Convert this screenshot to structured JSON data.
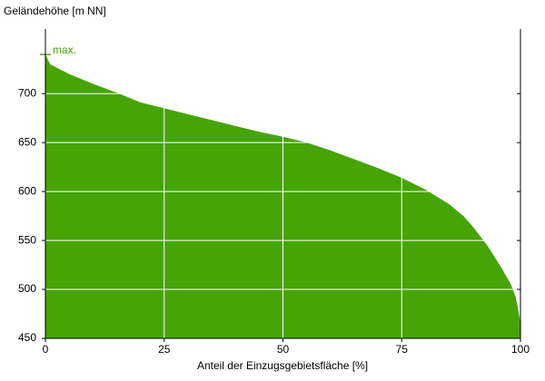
{
  "chart_data": {
    "type": "area",
    "x_label": "Anteil der Einzugsgebietsfläche [%]",
    "y_label": "Geländehöhe [m NN]",
    "x": [
      0,
      1,
      5,
      10,
      15,
      20,
      25,
      30,
      35,
      40,
      45,
      50,
      55,
      60,
      65,
      70,
      75,
      80,
      85,
      88,
      90,
      93,
      96,
      98,
      99,
      99.5,
      100
    ],
    "series": [
      {
        "name": "Geländehöhe",
        "color": "#46a407",
        "values": [
          740,
          730,
          720,
          710,
          701,
          691,
          685,
          679,
          673,
          667,
          661,
          656,
          650,
          642,
          633,
          624,
          614,
          602,
          587,
          575,
          564,
          545,
          522,
          505,
          492,
          480,
          465
        ]
      }
    ],
    "annotations": [
      {
        "text": "max.",
        "x": 0,
        "y": 740
      }
    ],
    "xlim": [
      0,
      100
    ],
    "xticks": [
      0,
      25,
      50,
      75,
      100
    ],
    "ylim": [
      450,
      766
    ],
    "yticks": [
      450,
      500,
      550,
      600,
      650,
      700
    ],
    "grid": true
  }
}
